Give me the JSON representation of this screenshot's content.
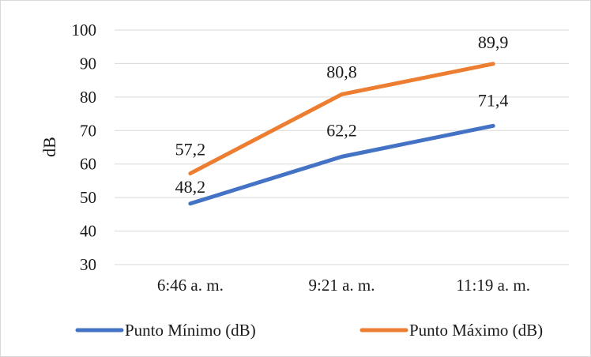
{
  "chart_data": {
    "type": "line",
    "title": "",
    "xlabel": "",
    "ylabel": "dB",
    "ylim": [
      30,
      100
    ],
    "ytick_step": 10,
    "grid": true,
    "legend_position": "bottom",
    "categories": [
      "6:46 a. m.",
      "9:21 a. m.",
      "11:19 a. m."
    ],
    "series": [
      {
        "name": "Punto Mínimo (dB)",
        "color": "#4472c4",
        "values": [
          48.2,
          62.2,
          71.4
        ],
        "data_labels": [
          "48,2",
          "62,2",
          "71,4"
        ]
      },
      {
        "name": "Punto Máximo (dB)",
        "color": "#ed7d31",
        "values": [
          57.2,
          80.8,
          89.9
        ],
        "data_labels": [
          "57,2",
          "80,8",
          "89,9"
        ]
      }
    ]
  }
}
